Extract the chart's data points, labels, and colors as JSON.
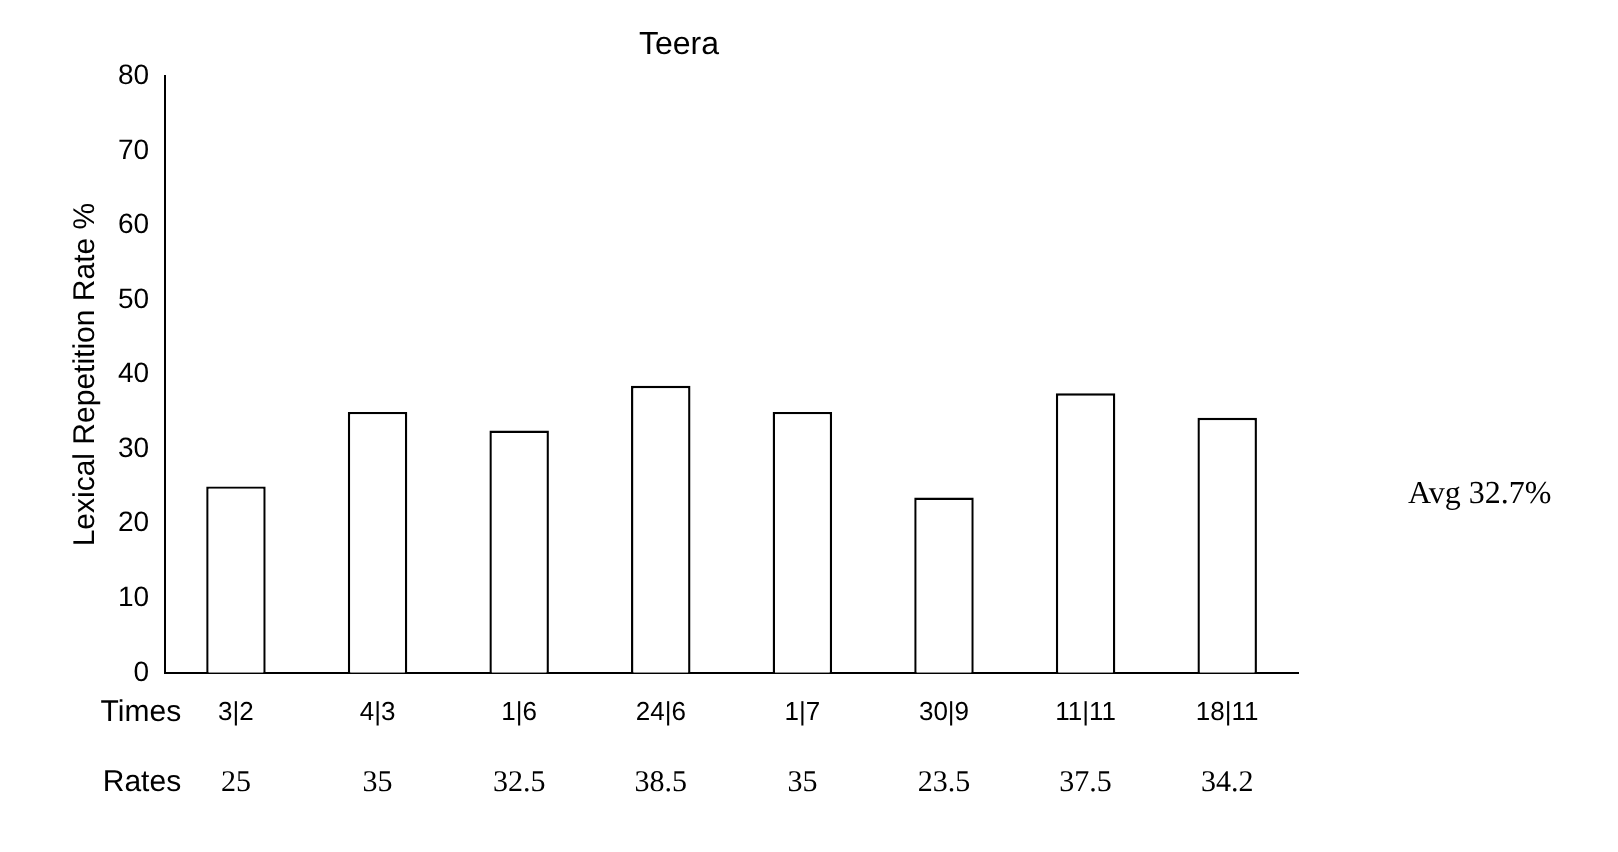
{
  "chart_data": {
    "type": "bar",
    "title": "Teera",
    "xlabel": "Times",
    "ylabel": "Lexical Repetition Rate %",
    "categories": [
      "3|2",
      "4|3",
      "1|6",
      "24|6",
      "1|7",
      "30|9",
      "11|11",
      "18|11"
    ],
    "values": [
      25,
      35,
      32.5,
      38.5,
      35,
      23.5,
      37.5,
      34.2
    ],
    "color": "#ffffff",
    "ylim": [
      0,
      80
    ],
    "yticks": [
      0,
      10,
      20,
      30,
      40,
      50,
      60,
      70,
      80
    ],
    "grid": false,
    "legend": false,
    "data_labels": true,
    "annotations": [
      "Rates",
      "Avg 32.7%"
    ]
  }
}
